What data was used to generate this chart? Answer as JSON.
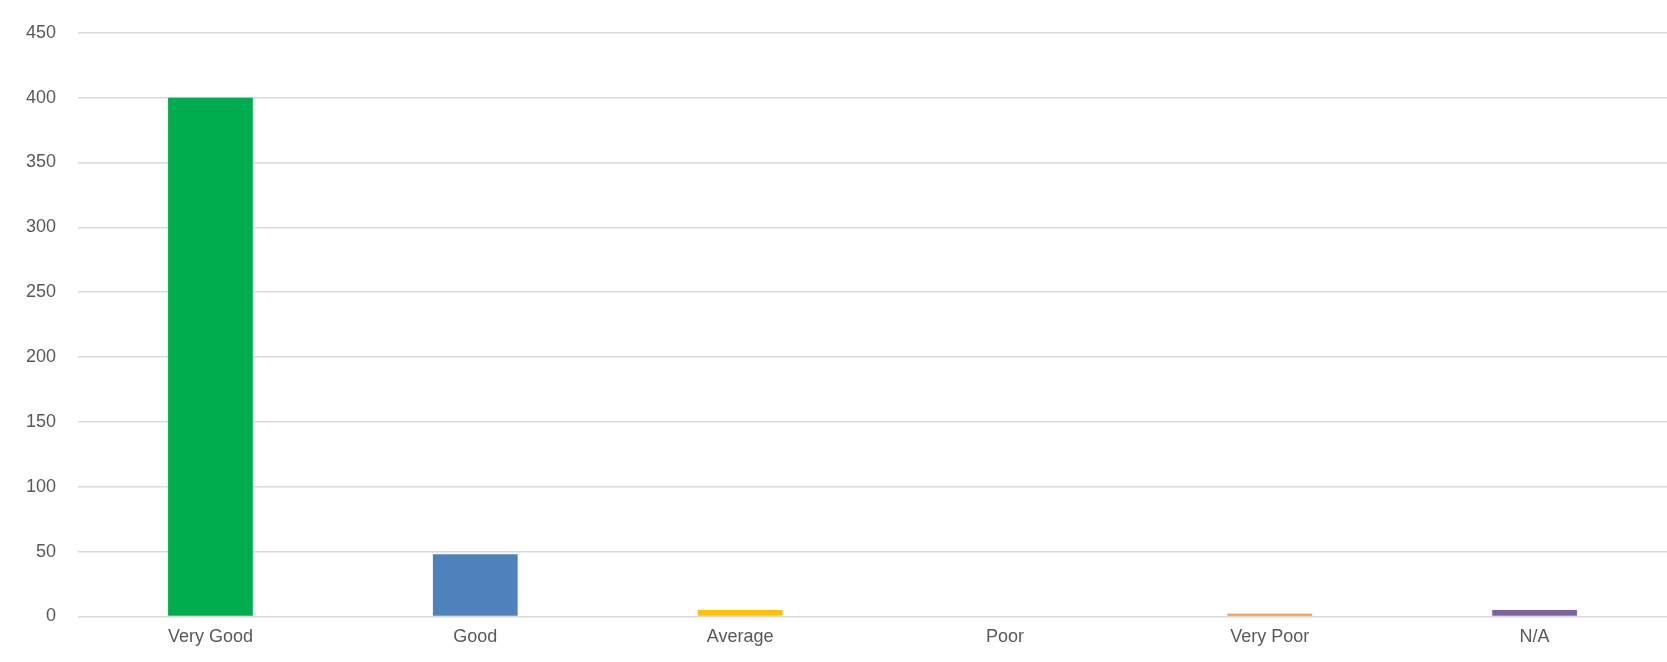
{
  "chart_data": {
    "type": "bar",
    "categories": [
      "Very Good",
      "Good",
      "Average",
      "Poor",
      "Very Poor",
      "N/A"
    ],
    "values": [
      400,
      48,
      5,
      0,
      2,
      5
    ],
    "colors": [
      "#00ad4e",
      "#4f81bd",
      "#ffc000",
      "#ed7d31",
      "#f79646",
      "#8064a2"
    ],
    "ylim": [
      0,
      450
    ],
    "yticks": [
      0,
      50,
      100,
      150,
      200,
      250,
      300,
      350,
      400,
      450
    ],
    "grid": "y",
    "legend": false
  }
}
